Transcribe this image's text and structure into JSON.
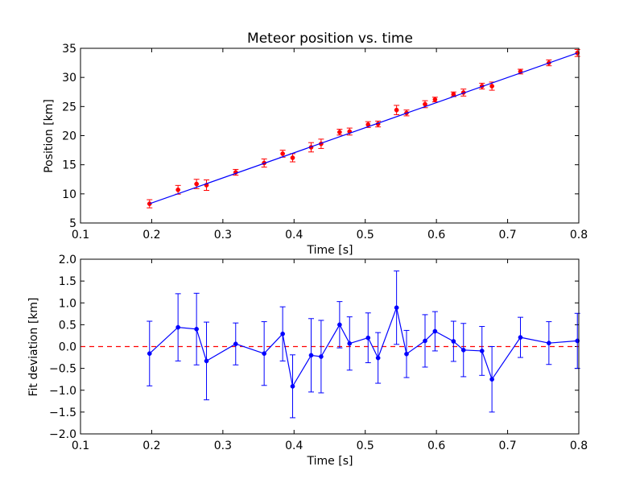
{
  "chart_data": [
    {
      "type": "scatter",
      "title": "Meteor position vs. time",
      "xlabel": "Time [s]",
      "ylabel": "Position [km]",
      "xlim": [
        0.1,
        0.8
      ],
      "ylim": [
        5,
        35
      ],
      "xticks": [
        "0.1",
        "0.2",
        "0.3",
        "0.4",
        "0.5",
        "0.6",
        "0.7",
        "0.8"
      ],
      "yticks": [
        "5",
        "10",
        "15",
        "20",
        "25",
        "30",
        "35"
      ],
      "grid": false,
      "series": [
        {
          "style": "points-with-errorbars",
          "color": "#ff0000",
          "x": [
            0.197,
            0.237,
            0.263,
            0.277,
            0.318,
            0.358,
            0.384,
            0.398,
            0.424,
            0.438,
            0.464,
            0.478,
            0.504,
            0.518,
            0.544,
            0.558,
            0.584,
            0.598,
            0.624,
            0.638,
            0.664,
            0.678,
            0.718,
            0.758,
            0.798
          ],
          "y": [
            8.3,
            10.7,
            11.7,
            11.5,
            13.7,
            15.3,
            16.9,
            16.2,
            18.0,
            18.6,
            20.6,
            20.7,
            21.9,
            22.0,
            24.4,
            23.9,
            25.4,
            26.2,
            27.1,
            27.4,
            28.5,
            28.5,
            31.0,
            32.5,
            34.2
          ],
          "yerr": [
            0.7,
            0.75,
            0.8,
            0.9,
            0.5,
            0.7,
            0.6,
            0.7,
            0.8,
            0.8,
            0.5,
            0.6,
            0.5,
            0.5,
            0.8,
            0.5,
            0.6,
            0.4,
            0.4,
            0.6,
            0.5,
            0.7,
            0.4,
            0.5,
            0.6
          ]
        },
        {
          "style": "line",
          "color": "#0000ff",
          "x": [
            0.197,
            0.798
          ],
          "y": [
            8.3,
            34.2
          ]
        }
      ]
    },
    {
      "type": "line",
      "title": "",
      "xlabel": "Time [s]",
      "ylabel": "Fit deviation [km]",
      "xlim": [
        0.1,
        0.8
      ],
      "ylim": [
        -2.0,
        2.0
      ],
      "xticks": [
        "0.1",
        "0.2",
        "0.3",
        "0.4",
        "0.5",
        "0.6",
        "0.7",
        "0.8"
      ],
      "yticks": [
        "−2.0",
        "−1.5",
        "−1.0",
        "−0.5",
        "0.0",
        "0.5",
        "1.0",
        "1.5",
        "2.0"
      ],
      "grid": false,
      "reference_line": {
        "y": 0.0,
        "style": "dashed",
        "color": "#ff0000"
      },
      "series": [
        {
          "style": "line-markers-with-errorbars",
          "color": "#0000ff",
          "x": [
            0.197,
            0.237,
            0.263,
            0.277,
            0.318,
            0.358,
            0.384,
            0.398,
            0.424,
            0.438,
            0.464,
            0.478,
            0.504,
            0.518,
            0.544,
            0.558,
            0.584,
            0.598,
            0.624,
            0.638,
            0.664,
            0.678,
            0.718,
            0.758,
            0.798
          ],
          "y": [
            -0.16,
            0.44,
            0.4,
            -0.33,
            0.06,
            -0.16,
            0.29,
            -0.91,
            -0.2,
            -0.23,
            0.5,
            0.07,
            0.2,
            -0.26,
            0.89,
            -0.17,
            0.13,
            0.35,
            0.12,
            -0.08,
            -0.1,
            -0.75,
            0.21,
            0.08,
            0.13
          ],
          "yerr": [
            0.74,
            0.77,
            0.82,
            0.89,
            0.48,
            0.73,
            0.62,
            0.72,
            0.84,
            0.83,
            0.53,
            0.61,
            0.57,
            0.58,
            0.84,
            0.54,
            0.6,
            0.45,
            0.46,
            0.61,
            0.56,
            0.75,
            0.46,
            0.49,
            0.63
          ]
        }
      ]
    }
  ]
}
